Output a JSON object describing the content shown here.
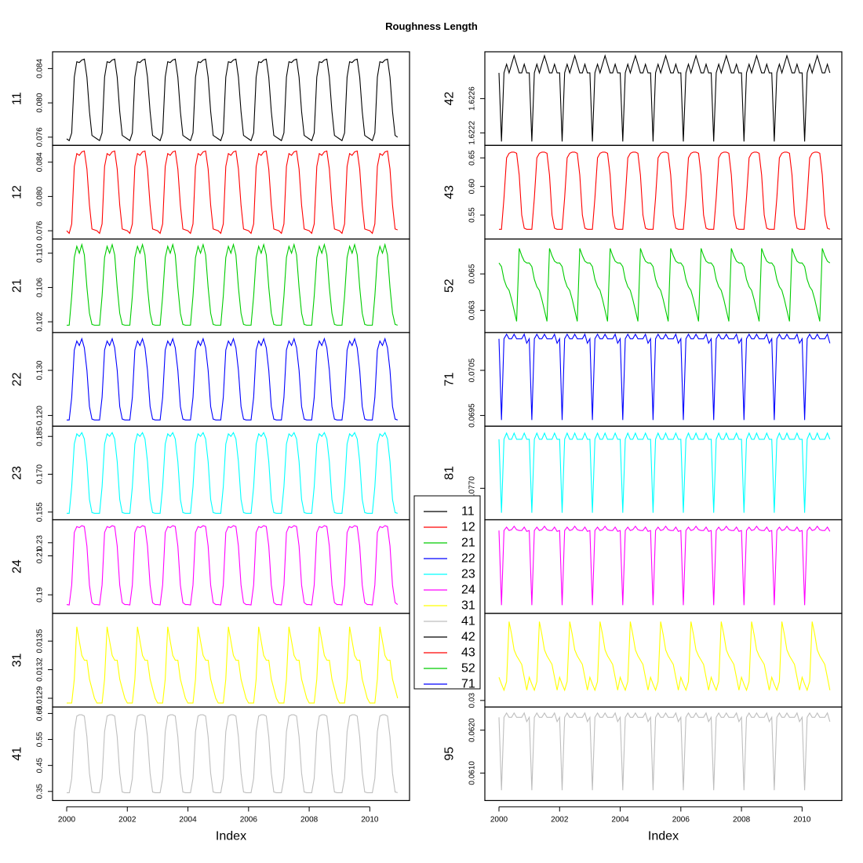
{
  "chart_data": {
    "type": "line",
    "title": "Roughness Length",
    "xlabel": "Index",
    "x_ticks": [
      "2000",
      "2002",
      "2004",
      "2006",
      "2008",
      "2010"
    ],
    "x_range": [
      2000,
      2011
    ],
    "columns": [
      {
        "panels": [
          {
            "name": "11",
            "color": "#000000",
            "ylim": [
              0.0755,
              0.0855
            ],
            "ticks": [
              "0.076",
              "0.080",
              "0.084"
            ],
            "annual": [
              0.0758,
              0.0756,
              0.0765,
              0.083,
              0.0848,
              0.0847,
              0.085,
              0.0851,
              0.083,
              0.079,
              0.0762,
              0.076
            ]
          },
          {
            "name": "12",
            "color": "#ff0000",
            "ylim": [
              0.0755,
              0.0855
            ],
            "ticks": [
              "0.076",
              "0.080",
              "0.084"
            ],
            "annual": [
              0.076,
              0.0757,
              0.0768,
              0.0835,
              0.085,
              0.0848,
              0.0852,
              0.0853,
              0.0832,
              0.079,
              0.0762,
              0.0761
            ]
          },
          {
            "name": "21",
            "color": "#00cc00",
            "ylim": [
              0.1012,
              0.1112
            ],
            "ticks": [
              "0.102",
              "0.106",
              "0.110"
            ],
            "annual": [
              0.1016,
              0.1016,
              0.105,
              0.1095,
              0.1108,
              0.11,
              0.111,
              0.1098,
              0.106,
              0.103,
              0.1017,
              0.1016
            ]
          },
          {
            "name": "22",
            "color": "#0000ff",
            "ylim": [
              0.1185,
              0.1375
            ],
            "ticks": [
              "0.120",
              "0.130"
            ],
            "annual": [
              0.119,
              0.119,
              0.124,
              0.1345,
              0.1365,
              0.1355,
              0.137,
              0.135,
              0.13,
              0.122,
              0.1192,
              0.119
            ]
          },
          {
            "name": "23",
            "color": "#00ffff",
            "ylim": [
              0.1535,
              0.1875
            ],
            "ticks": [
              "0.155",
              "0.170",
              "0.185"
            ],
            "annual": [
              0.1545,
              0.1545,
              0.165,
              0.182,
              0.186,
              0.185,
              0.1865,
              0.184,
              0.175,
              0.16,
              0.1548,
              0.1545
            ]
          },
          {
            "name": "24",
            "color": "#ff00ff",
            "ylim": [
              0.1825,
              0.2265
            ],
            "ticks": [
              "0.19",
              "0.21",
              "0.23"
            ],
            "annual": [
              0.185,
              0.1848,
              0.195,
              0.222,
              0.225,
              0.2245,
              0.2255,
              0.225,
              0.215,
              0.195,
              0.186,
              0.185
            ]
          },
          {
            "name": "31",
            "color": "#ffff00",
            "ylim": [
              0.01285,
              0.01375
            ],
            "ticks": [
              "0.0129",
              "0.0132",
              "0.0135"
            ],
            "annual": [
              0.01285,
              0.01285,
              0.01285,
              0.0131,
              0.01365,
              0.0135,
              0.01335,
              0.0133,
              0.0133,
              0.0131,
              0.013,
              0.0129
            ]
          },
          {
            "name": "41",
            "color": "#bebebe",
            "ylim": [
              0.33,
              0.66
            ],
            "ticks": [
              "0.35",
              "0.45",
              "0.55",
              "0.65"
            ],
            "annual": [
              0.345,
              0.345,
              0.4,
              0.58,
              0.64,
              0.645,
              0.645,
              0.64,
              0.56,
              0.42,
              0.348,
              0.345
            ]
          }
        ]
      },
      {
        "panels": [
          {
            "name": "42",
            "color": "#000000",
            "ylim": [
              1.6221,
              1.6231
            ],
            "ticks": [
              "1.6222",
              "1.6226"
            ],
            "annual": [
              1.6229,
              1.6221,
              1.6229,
              1.623,
              1.6229,
              1.623,
              1.6231,
              1.623,
              1.6229,
              1.6229,
              1.623,
              1.6229
            ]
          },
          {
            "name": "43",
            "color": "#ff0000",
            "ylim": [
              0.515,
              0.665
            ],
            "ticks": [
              "0.55",
              "0.60",
              "0.65"
            ],
            "annual": [
              0.525,
              0.525,
              0.58,
              0.65,
              0.658,
              0.66,
              0.66,
              0.658,
              0.62,
              0.55,
              0.527,
              0.525
            ]
          },
          {
            "name": "52",
            "color": "#00cc00",
            "ylim": [
              0.062,
              0.0667
            ],
            "ticks": [
              "0.063",
              "0.065"
            ],
            "annual": [
              0.0656,
              0.0654,
              0.0647,
              0.0643,
              0.0641,
              0.0636,
              0.063,
              0.0624,
              0.0664,
              0.066,
              0.0657,
              0.0656
            ]
          },
          {
            "name": "71",
            "color": "#0000ff",
            "ylim": [
              0.06935,
              0.07125
            ],
            "ticks": [
              "0.0695",
              "0.0705"
            ],
            "annual": [
              0.0712,
              0.0694,
              0.0712,
              0.0713,
              0.0712,
              0.0712,
              0.0713,
              0.0712,
              0.0712,
              0.0712,
              0.0713,
              0.0711
            ]
          },
          {
            "name": "81",
            "color": "#00ffff",
            "ylim": [
              0.07655,
              0.07795
            ],
            "ticks": [
              "0.0770"
            ],
            "annual": [
              0.0778,
              0.0766,
              0.0778,
              0.0779,
              0.0778,
              0.0778,
              0.0779,
              0.0778,
              0.0778,
              0.0778,
              0.0779,
              0.0778
            ]
          },
          {
            "name": "",
            "color": "#ff00ff",
            "ylim": [
              0.0,
              1.0
            ],
            "ticks": [],
            "annual": [
              0.92,
              0.05,
              0.92,
              0.96,
              0.92,
              0.93,
              0.97,
              0.93,
              0.92,
              0.92,
              0.96,
              0.91
            ]
          },
          {
            "name": "",
            "color": "#ffff00",
            "ylim": [
              0.0,
              1.0
            ],
            "ticks": [
              "0.03"
            ],
            "annual": [
              0.3,
              0.22,
              0.15,
              0.25,
              0.95,
              0.8,
              0.62,
              0.55,
              0.5,
              0.45,
              0.3,
              0.15
            ]
          },
          {
            "name": "95",
            "color": "#bebebe",
            "ylim": [
              0.06045,
              0.06245
            ],
            "ticks": [
              "0.0610",
              "0.0620"
            ],
            "annual": [
              0.0623,
              0.0606,
              0.0623,
              0.0624,
              0.0623,
              0.0623,
              0.0624,
              0.0623,
              0.0623,
              0.0623,
              0.0624,
              0.0622
            ]
          }
        ]
      }
    ],
    "legend": {
      "placement": "center",
      "entries": [
        {
          "name": "11",
          "color": "#000000"
        },
        {
          "name": "12",
          "color": "#ff0000"
        },
        {
          "name": "21",
          "color": "#00cc00"
        },
        {
          "name": "22",
          "color": "#0000ff"
        },
        {
          "name": "23",
          "color": "#00ffff"
        },
        {
          "name": "24",
          "color": "#ff00ff"
        },
        {
          "name": "31",
          "color": "#ffff00"
        },
        {
          "name": "41",
          "color": "#bebebe"
        },
        {
          "name": "42",
          "color": "#000000"
        },
        {
          "name": "43",
          "color": "#ff0000"
        },
        {
          "name": "52",
          "color": "#00cc00"
        },
        {
          "name": "71",
          "color": "#0000ff"
        }
      ]
    }
  }
}
